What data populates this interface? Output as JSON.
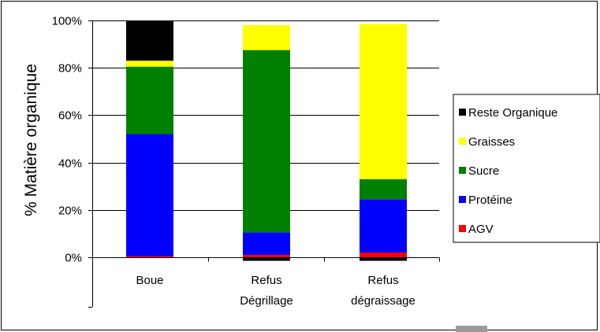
{
  "chart_data": {
    "type": "bar",
    "stacked": true,
    "title": "",
    "xlabel": "",
    "ylabel": "% Matière organique",
    "ylim": [
      0,
      100
    ],
    "yticks": [
      "0%",
      "20%",
      "40%",
      "60%",
      "80%",
      "100%"
    ],
    "grid": true,
    "legend_position": "right",
    "categories": [
      [
        "Boue"
      ],
      [
        "Refus",
        "Dégrillage"
      ],
      [
        "Refus",
        "dégraissage"
      ]
    ],
    "series": [
      {
        "name": "AGV",
        "color": "#ff0000",
        "values": [
          0.5,
          1,
          2
        ]
      },
      {
        "name": "Protéine",
        "color": "#0000ff",
        "values": [
          51.5,
          9.5,
          22.5
        ]
      },
      {
        "name": "Sucre",
        "color": "#008000",
        "values": [
          28.5,
          77,
          8.5
        ]
      },
      {
        "name": "Graisses",
        "color": "#ffff00",
        "values": [
          2.5,
          10.5,
          65.5
        ]
      },
      {
        "name": "Reste Organique",
        "color": "#000000",
        "values": [
          17,
          -1.5,
          -1.5
        ]
      }
    ],
    "legend_order": [
      "Reste Organique",
      "Graisses",
      "Sucre",
      "Protéine",
      "AGV"
    ]
  }
}
